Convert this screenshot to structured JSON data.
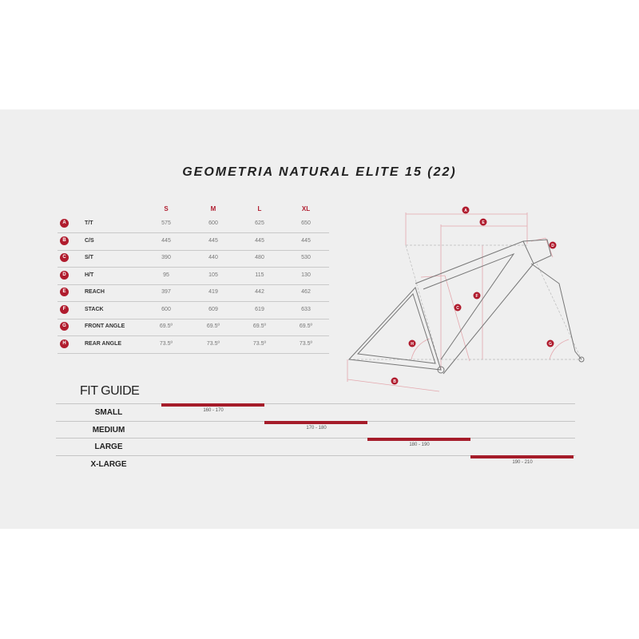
{
  "title": "GEOMETRIA NATURAL ELITE 15 (22)",
  "sizes": [
    "S",
    "M",
    "L",
    "XL"
  ],
  "rows": [
    {
      "badge": "A",
      "label": "T/T",
      "values": [
        "575",
        "600",
        "625",
        "650"
      ]
    },
    {
      "badge": "B",
      "label": "C/S",
      "values": [
        "445",
        "445",
        "445",
        "445"
      ]
    },
    {
      "badge": "C",
      "label": "S/T",
      "values": [
        "390",
        "440",
        "480",
        "530"
      ]
    },
    {
      "badge": "D",
      "label": "H/T",
      "values": [
        "95",
        "105",
        "115",
        "130"
      ]
    },
    {
      "badge": "E",
      "label": "REACH",
      "values": [
        "397",
        "419",
        "442",
        "462"
      ]
    },
    {
      "badge": "F",
      "label": "STACK",
      "values": [
        "600",
        "609",
        "619",
        "633"
      ]
    },
    {
      "badge": "G",
      "label": "FRONT ANGLE",
      "values": [
        "69.5º",
        "69.5º",
        "69.5º",
        "69.5º"
      ]
    },
    {
      "badge": "H",
      "label": "REAR ANGLE",
      "values": [
        "73.5º",
        "73.5º",
        "73.5º",
        "73.5º"
      ]
    }
  ],
  "fit_guide": {
    "title": "FIT GUIDE",
    "rows": [
      {
        "label": "SMALL",
        "range": "160 - 170"
      },
      {
        "label": "MEDIUM",
        "range": "170 - 180"
      },
      {
        "label": "LARGE",
        "range": "180 - 190"
      },
      {
        "label": "X-LARGE",
        "range": "190 - 210"
      }
    ]
  },
  "diagram_labels": [
    "A",
    "B",
    "C",
    "D",
    "E",
    "F",
    "G",
    "H"
  ],
  "colors": {
    "accent": "#b01c2e",
    "background": "#efefef"
  }
}
